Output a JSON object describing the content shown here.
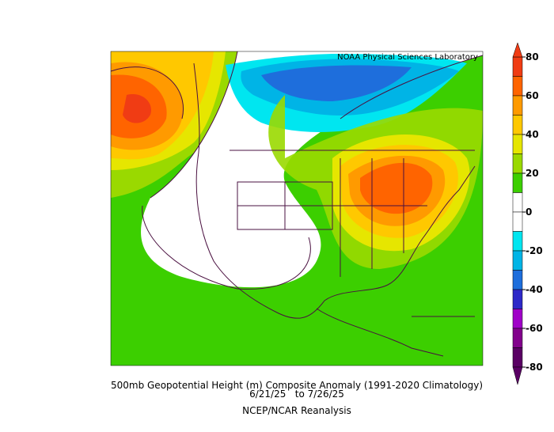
{
  "map": {
    "lab": "NOAA Physical Sciences Laboratory",
    "title": "500mb Geopotential Height (m) Composite Anomaly (1991-2020 Climatology)",
    "dates": "6/21/25   to 7/26/25",
    "source": "NCEP/NCAR Reanalysis",
    "colorbar": {
      "range": [
        -80,
        80
      ],
      "ticks": [
        80,
        60,
        40,
        20,
        0,
        -20,
        -40,
        -60,
        -80
      ],
      "colors": [
        "#f03c14",
        "#ff6400",
        "#ff9a00",
        "#ffc800",
        "#e6e600",
        "#9ad900",
        "#3ccf00",
        "#ffffff",
        "#ffffff",
        "#00e6f0",
        "#00b4e6",
        "#1e6edc",
        "#2d28c8",
        "#a000c8",
        "#82008c",
        "#5a0064"
      ]
    }
  }
}
